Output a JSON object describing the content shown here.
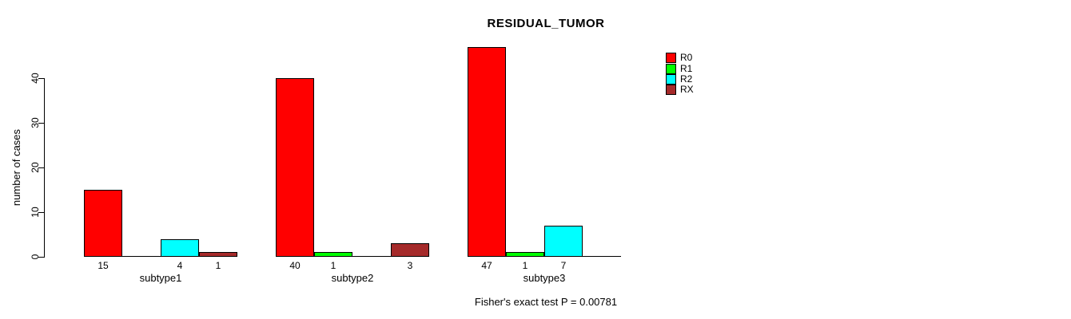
{
  "chart_data": {
    "type": "bar",
    "title": "RESIDUAL_TUMOR",
    "xlabel": "",
    "ylabel": "number of cases",
    "categories": [
      "subtype1",
      "subtype2",
      "subtype3"
    ],
    "series": [
      {
        "name": "R0",
        "color": "#FF0000",
        "values": [
          15,
          40,
          47
        ]
      },
      {
        "name": "R1",
        "color": "#00FF00",
        "values": [
          0,
          1,
          1
        ]
      },
      {
        "name": "R2",
        "color": "#00FFFF",
        "values": [
          4,
          0,
          7
        ]
      },
      {
        "name": "RX",
        "color": "#A52A2A",
        "values": [
          1,
          3,
          0
        ]
      }
    ],
    "ylim": [
      0,
      40
    ],
    "yticks": [
      0,
      10,
      20,
      30,
      40
    ],
    "grid": false,
    "legend_position": "right",
    "bar_value_labels": "shown below nonzero bars",
    "zero_bars": "drawn as flat baseline segments, no label",
    "annotation": "Fisher's exact test P = 0.00781"
  }
}
